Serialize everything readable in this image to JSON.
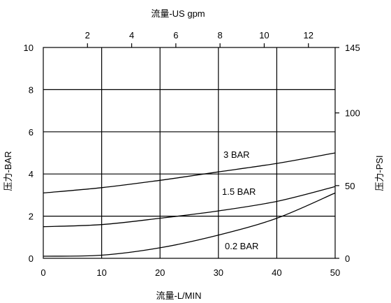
{
  "chart_data": {
    "type": "line",
    "x_axis": {
      "label": "流量-L/MIN",
      "range": [
        0,
        50
      ],
      "ticks": [
        0,
        10,
        20,
        30,
        40,
        50
      ]
    },
    "x2_axis": {
      "label": "流量-US gpm",
      "range": [
        0,
        13.21
      ],
      "ticks": [
        2,
        4,
        6,
        8,
        10,
        12
      ]
    },
    "y_axis": {
      "label": "压力-BAR",
      "range": [
        0,
        10
      ],
      "ticks": [
        0,
        2,
        4,
        6,
        8,
        10
      ]
    },
    "y2_axis": {
      "label": "压力-PSI",
      "range": [
        0,
        145
      ],
      "ticks": [
        0,
        50,
        100,
        145
      ]
    },
    "grid": true,
    "series": [
      {
        "name": "3 BAR",
        "x": [
          0,
          10,
          20,
          30,
          40,
          50
        ],
        "y": [
          3.1,
          3.35,
          3.7,
          4.1,
          4.5,
          5.0
        ]
      },
      {
        "name": "1.5 BAR",
        "x": [
          0,
          10,
          20,
          30,
          40,
          50
        ],
        "y": [
          1.5,
          1.6,
          1.9,
          2.25,
          2.7,
          3.4
        ]
      },
      {
        "name": "0.2 BAR",
        "x": [
          0,
          10,
          20,
          30,
          40,
          50
        ],
        "y": [
          0.1,
          0.15,
          0.5,
          1.1,
          1.9,
          3.1
        ]
      }
    ]
  }
}
